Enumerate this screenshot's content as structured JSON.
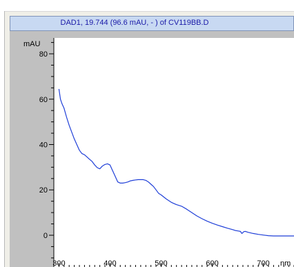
{
  "chart_data": {
    "type": "line",
    "title": "DAD1, 19.744 (96.6 mAU, - ) of CV119BB.D",
    "xlabel": "nm",
    "ylabel": "mAU",
    "xlim": [
      290,
      760
    ],
    "ylim": [
      -14,
      87
    ],
    "x_ticks": [
      300,
      400,
      500,
      600,
      700
    ],
    "y_ticks": [
      0,
      20,
      40,
      60,
      80
    ],
    "grid": false,
    "series": [
      {
        "color": "#1f3fd8",
        "x": [
          300,
          303,
          306,
          310,
          315,
          320,
          325,
          330,
          335,
          340,
          345,
          350,
          355,
          360,
          365,
          370,
          375,
          380,
          385,
          390,
          395,
          400,
          405,
          410,
          415,
          420,
          425,
          430,
          435,
          440,
          445,
          450,
          455,
          460,
          465,
          470,
          475,
          480,
          485,
          490,
          495,
          500,
          510,
          520,
          530,
          540,
          550,
          560,
          570,
          580,
          590,
          600,
          610,
          620,
          630,
          640,
          645,
          650,
          655,
          658,
          662,
          665,
          670,
          680,
          690,
          700,
          710,
          720,
          730,
          740,
          750,
          760
        ],
        "y": [
          64.5,
          60,
          58,
          56,
          52,
          48.5,
          45.5,
          42.5,
          40,
          37.5,
          36,
          35.5,
          34.5,
          33.5,
          32.5,
          31,
          29.8,
          29.3,
          30.5,
          31.2,
          31.5,
          31,
          28.5,
          26,
          23.5,
          23,
          23,
          23.2,
          23.5,
          24,
          24.2,
          24.4,
          24.5,
          24.5,
          24.5,
          24.2,
          23.5,
          22.5,
          21.5,
          20,
          18.5,
          17.8,
          16,
          14.5,
          13.5,
          12.8,
          11.5,
          10,
          8.5,
          7.3,
          6.2,
          5.3,
          4.5,
          3.8,
          3.1,
          2.5,
          2.1,
          1.9,
          1.7,
          0.8,
          1.6,
          1.7,
          1.3,
          0.8,
          0.4,
          0.1,
          -0.2,
          -0.3,
          -0.3,
          -0.3,
          -0.3,
          -0.3
        ]
      }
    ]
  }
}
